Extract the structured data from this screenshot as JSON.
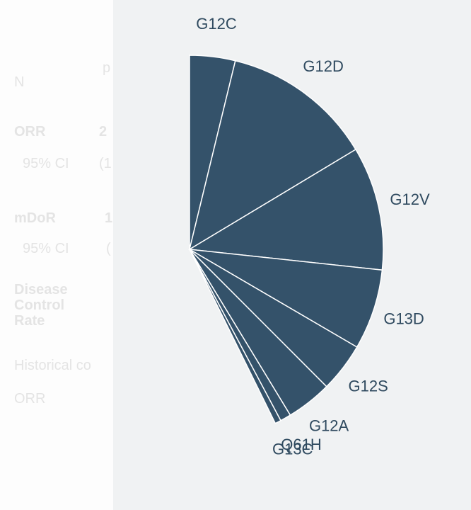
{
  "background_table": {
    "cells": [
      "p",
      "N",
      "ORR",
      "2",
      "95% CI",
      "(1",
      "mDoR",
      "1",
      "95% CI",
      "(",
      "Disease Control Rate",
      "Historical co",
      "ORR"
    ]
  },
  "chart_data": {
    "type": "pie",
    "categories": [
      "G12C",
      "G12D",
      "G12V",
      "G13D",
      "G12S",
      "G12A",
      "Q61H",
      "G13C"
    ],
    "values": [
      3.8,
      12.6,
      10.3,
      6.7,
      4.1,
      3.8,
      0.9,
      0.5
    ],
    "color": "#34526a"
  }
}
